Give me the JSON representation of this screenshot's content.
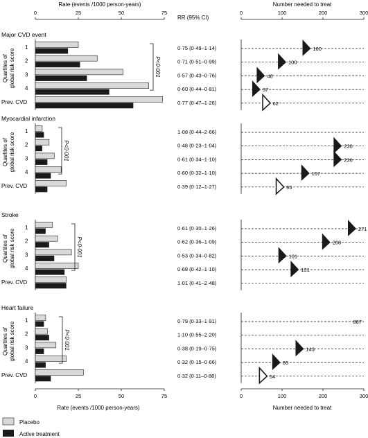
{
  "figure": {
    "left_top_axis_label": "Rate (events /1000 person-years)",
    "left_bottom_axis_label": "Rate (events /1000 person-years)",
    "rr_header": "RR (95% CI)",
    "right_top_axis_label": "Number needed to treat",
    "right_bottom_axis_label": "Number needed to treat",
    "y_group_label_line1": "Quartiles of",
    "y_group_label_line2": "global risk score",
    "pval_label": "P<0·001",
    "rate_ticks": [
      "0",
      "25",
      "50",
      "75"
    ],
    "nnt_ticks": [
      "0",
      "100",
      "200",
      "300"
    ]
  },
  "legend": {
    "placebo": "Placebo",
    "active": "Active treatment",
    "placebo_color": "#d9d9d9",
    "active_color": "#1a1a1a"
  },
  "chart_data": {
    "type": "bar",
    "rate_axis": {
      "label": "Rate (events /1000 person-years)",
      "xlim": [
        0,
        75
      ]
    },
    "nnt_axis": {
      "label": "Number needed to treat",
      "xlim": [
        0,
        300
      ]
    },
    "panels": [
      {
        "title": "Major CVD event",
        "pval": "P<0·001",
        "rows": [
          {
            "label": "1",
            "placebo": 25,
            "active": 19,
            "rr": "0·75 (0·49–1·14)",
            "nnt": 160,
            "nnt_label": "160",
            "open": false
          },
          {
            "label": "2",
            "placebo": 36,
            "active": 26,
            "rr": "0·71 (0·51–0·99)",
            "nnt": 100,
            "nnt_label": "100",
            "open": false
          },
          {
            "label": "3",
            "placebo": 51,
            "active": 30,
            "rr": "0·57 (0·43–0·76)",
            "nnt": 48,
            "nnt_label": "48",
            "open": false
          },
          {
            "label": "4",
            "placebo": 66,
            "active": 43,
            "rr": "0·60 (0·44–0·81)",
            "nnt": 37,
            "nnt_label": "37",
            "open": false
          },
          {
            "label": "Prev. CVD",
            "placebo": 74,
            "active": 57,
            "rr": "0·77 (0·47–1·26)",
            "nnt": 62,
            "nnt_label": "62",
            "open": true
          }
        ]
      },
      {
        "title": "Myocardial infarction",
        "pval": "P<0·001",
        "rows": [
          {
            "label": "1",
            "placebo": 4,
            "active": 5,
            "rr": "1·08 (0·44–2·66)",
            "nnt": null,
            "nnt_label": "",
            "open": false
          },
          {
            "label": "2",
            "placebo": 8,
            "active": 4,
            "rr": "0·48 (0·23–1·04)",
            "nnt": 236,
            "nnt_label": "236",
            "open": false
          },
          {
            "label": "3",
            "placebo": 11,
            "active": 7,
            "rr": "0·61 (0·34–1·10)",
            "nnt": 236,
            "nnt_label": "236",
            "open": false
          },
          {
            "label": "4",
            "placebo": 15,
            "active": 9,
            "rr": "0·60 (0·32–1·10)",
            "nnt": 157,
            "nnt_label": "157",
            "open": false
          },
          {
            "label": "Prev. CVD",
            "placebo": 18,
            "active": 7,
            "rr": "0·39 (0·12–1·27)",
            "nnt": 95,
            "nnt_label": "95",
            "open": true
          }
        ]
      },
      {
        "title": "Stroke",
        "pval": "P<0·001",
        "rows": [
          {
            "label": "1",
            "placebo": 10,
            "active": 6,
            "rr": "0·61 (0·30–1·26)",
            "nnt": 271,
            "nnt_label": "271",
            "open": false
          },
          {
            "label": "2",
            "placebo": 13,
            "active": 8,
            "rr": "0·62 (0·36–1·09)",
            "nnt": 208,
            "nnt_label": "208",
            "open": false
          },
          {
            "label": "3",
            "placebo": 21,
            "active": 11,
            "rr": "0·53 (0·34–0·82)",
            "nnt": 101,
            "nnt_label": "101",
            "open": false
          },
          {
            "label": "4",
            "placebo": 25,
            "active": 17,
            "rr": "0·68 (0·42–1·10)",
            "nnt": 131,
            "nnt_label": "131",
            "open": false
          },
          {
            "label": "Prev. CVD",
            "placebo": 18,
            "active": 18,
            "rr": "1·01 (0·41–2·48)",
            "nnt": null,
            "nnt_label": "",
            "open": false
          }
        ]
      },
      {
        "title": "Heart failure",
        "pval": "P<0·001",
        "rows": [
          {
            "label": "1",
            "placebo": 6,
            "active": 5,
            "rr": "0·79 (0·33–1·91)",
            "nnt": 887,
            "nnt_label": "887",
            "open": false
          },
          {
            "label": "2",
            "placebo": 7,
            "active": 8,
            "rr": "1·10 (0·55–2·20)",
            "nnt": null,
            "nnt_label": "",
            "open": false
          },
          {
            "label": "3",
            "placebo": 12,
            "active": 5,
            "rr": "0·38 (0·19–0·75)",
            "nnt": 143,
            "nnt_label": "143",
            "open": false
          },
          {
            "label": "4",
            "placebo": 18,
            "active": 6,
            "rr": "0·32 (0·15–0·66)",
            "nnt": 86,
            "nnt_label": "86",
            "open": false
          },
          {
            "label": "Prev. CVD",
            "placebo": 28,
            "active": 9,
            "rr": "0·32 (0·11–0·88)",
            "nnt": 54,
            "nnt_label": "54",
            "open": true
          }
        ]
      }
    ]
  }
}
